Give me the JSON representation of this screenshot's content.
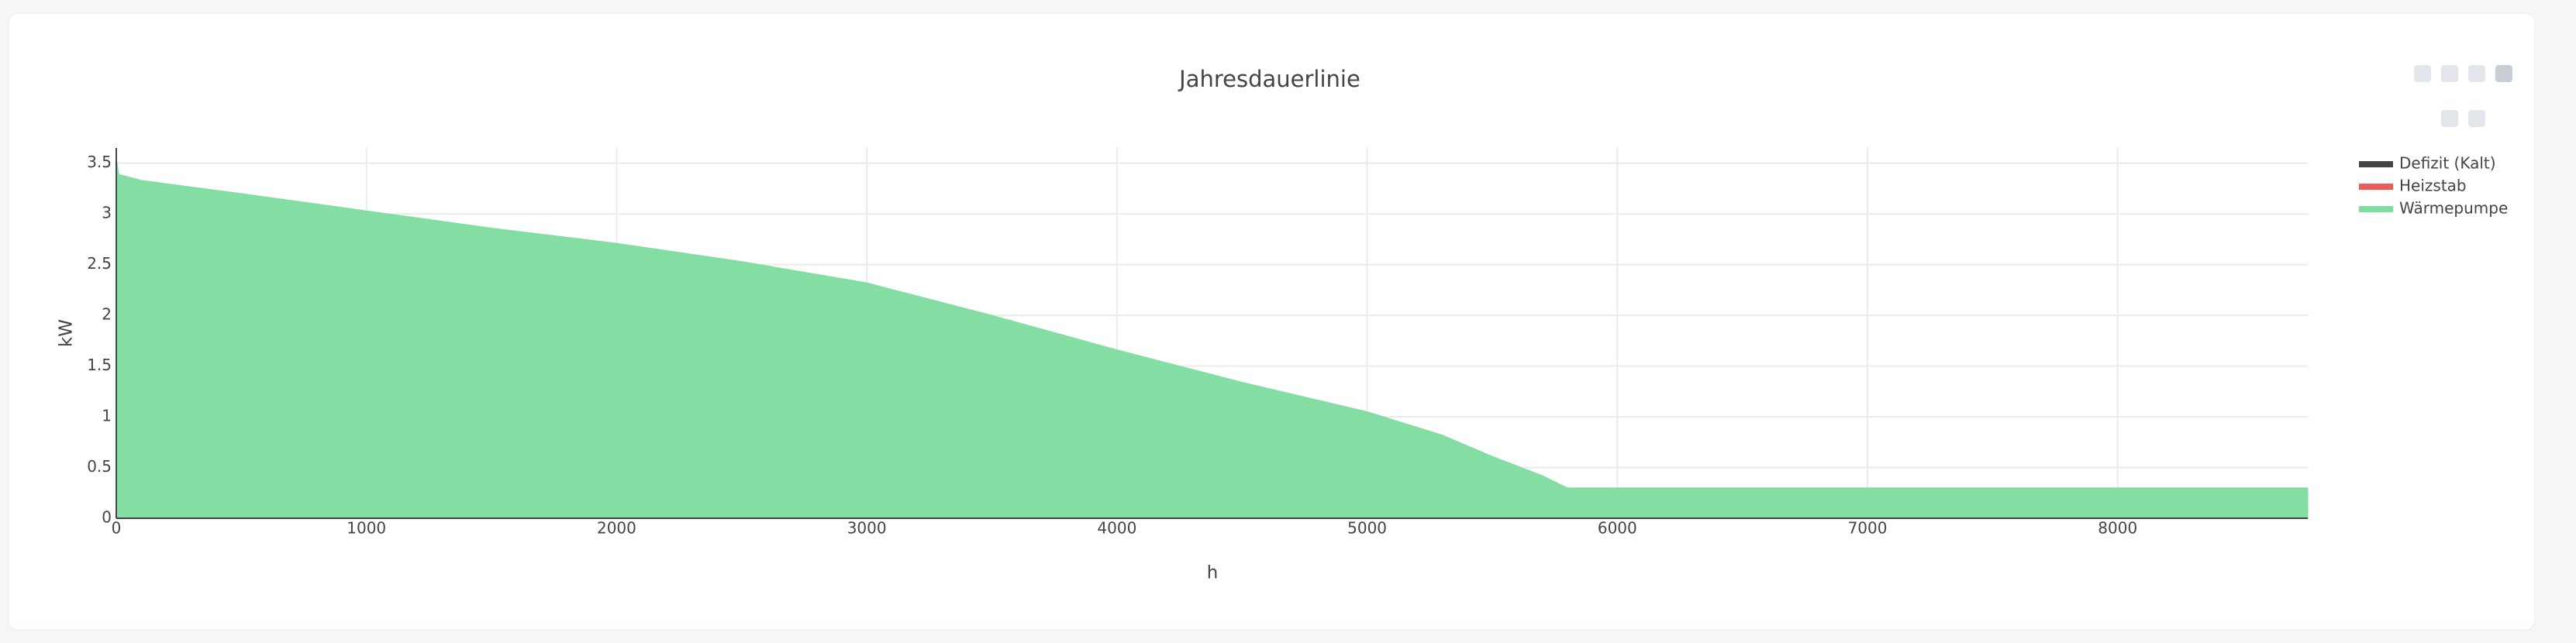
{
  "chart_data": {
    "type": "area",
    "title": "Jahresdauerlinie",
    "x_label": "h",
    "y_label": "kW",
    "x": [
      0,
      10,
      100,
      500,
      1000,
      1500,
      2000,
      2500,
      3000,
      3500,
      4000,
      4500,
      5000,
      5300,
      5500,
      5700,
      5800,
      8760
    ],
    "series": [
      {
        "name": "Defizit (Kalt)",
        "color": "#444444",
        "values": [
          null,
          null,
          null,
          null,
          null,
          null,
          null,
          null,
          null,
          null,
          null,
          null,
          null,
          null,
          null,
          null,
          null,
          null
        ]
      },
      {
        "name": "Heizstab",
        "color": "#ef5b5b",
        "values": [
          null,
          null,
          null,
          null,
          null,
          null,
          null,
          null,
          null,
          null,
          null,
          null,
          null,
          null,
          null,
          null,
          null,
          null
        ]
      },
      {
        "name": "Wärmepumpe",
        "color": "#7ddc9f",
        "values": [
          3.56,
          3.39,
          3.33,
          3.2,
          3.03,
          2.86,
          2.71,
          2.53,
          2.32,
          2.0,
          1.66,
          1.34,
          1.05,
          0.82,
          0.61,
          0.42,
          0.3,
          0.3
        ]
      }
    ],
    "xlim": [
      0,
      8760
    ],
    "xticks": [
      0,
      1000,
      2000,
      3000,
      4000,
      5000,
      6000,
      7000,
      8000
    ],
    "ylim": [
      0,
      3.65
    ],
    "yticks": [
      0,
      0.5,
      1,
      1.5,
      2,
      2.5,
      3,
      3.5
    ],
    "grid": true,
    "legend": "right"
  }
}
